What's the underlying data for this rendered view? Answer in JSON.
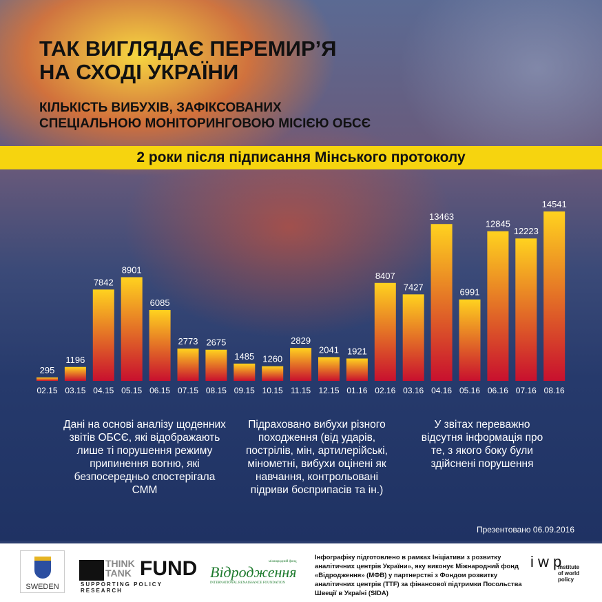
{
  "header": {
    "title_line1": "Так виглядає перемир’я",
    "title_line2": "на Сході України",
    "subtitle_line1": "Кількість вибухів, зафіксованих",
    "subtitle_line2": "спеціальною моніторинговою місією ОБСЄ",
    "band": "2 роки після підписання Мінського протоколу"
  },
  "chart_data": {
    "type": "bar",
    "categories": [
      "02.15",
      "03.15",
      "04.15",
      "05.15",
      "06.15",
      "07.15",
      "08.15",
      "09.15",
      "10.15",
      "11.15",
      "12.15",
      "01.16",
      "02.16",
      "03.16",
      "04.16",
      "05.16",
      "06.16",
      "07.16",
      "08.16"
    ],
    "values": [
      295,
      1196,
      7842,
      8901,
      6085,
      2773,
      2675,
      1485,
      1260,
      2829,
      2041,
      1921,
      8407,
      7427,
      13463,
      6991,
      12845,
      12223,
      14541
    ],
    "ylim": [
      0,
      14541
    ],
    "grid": false,
    "colors": {
      "top": "#ffd21f",
      "bottom": "#c8102e"
    }
  },
  "notes": [
    "Дані на основі аналізу щоденних звітів ОБСЄ, які відображають лише ті порушення режиму припинення вогню, які безпосередньо спостерігала СММ",
    "Підраховано вибухи різного походження (від ударів, пострілів, мін, артилерійські, мінометні, вибухи оцінені як навчання, контрольовані підриви боєприпасів та ін.)",
    "У звітах переважно відсутня інформація про те, з якого боку були здійснені порушення"
  ],
  "presented": "Презентовано 06.09.2016",
  "footer": {
    "sweden": "SWEDEN",
    "ttf_think": "THINK",
    "ttf_tank": "TANK",
    "ttf_fund": "FUND",
    "ttf_sub": "SUPPORTING POLICY RESEARCH",
    "irf_top": "міжнародний фонд",
    "irf": "Відродження",
    "irf_sub": "INTERNATIONAL RENAISSANCE FOUNDATION",
    "text": "Інфографіку підготовлено в рамках Ініціативи з розвитку аналітичних центрів України», яку виконує Міжнародний фонд «Відродження» (МФВ) у партнерстві з Фондом розвитку аналітичних центрів (TTF) за фінансової підтримки Посольства Швеції в Україні (SIDA)",
    "iwp": "i w p",
    "iwp_sub": "institute of world policy"
  }
}
